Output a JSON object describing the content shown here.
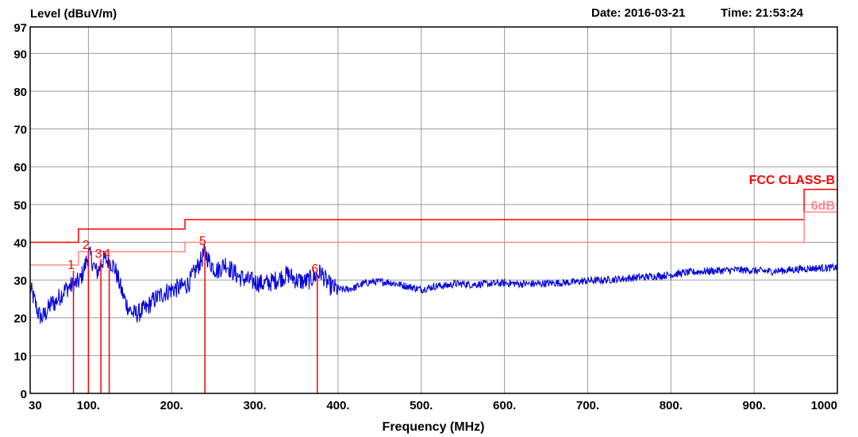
{
  "header": {
    "ylabel": "Level (dBuV/m)",
    "date_label": "Date: 2016-03-21",
    "time_label": "Time: 21:53:24"
  },
  "chart_data": {
    "type": "line",
    "xlabel": "Frequency (MHz)",
    "ylabel": "Level (dBuV/m)",
    "xlim": [
      30,
      1000
    ],
    "ylim": [
      0,
      97
    ],
    "x_ticks": [
      {
        "value": 30,
        "label": "30"
      },
      {
        "value": 100,
        "label": "100."
      },
      {
        "value": 200,
        "label": "200."
      },
      {
        "value": 300,
        "label": "300."
      },
      {
        "value": 400,
        "label": "400."
      },
      {
        "value": 500,
        "label": "500."
      },
      {
        "value": 600,
        "label": "600."
      },
      {
        "value": 700,
        "label": "700."
      },
      {
        "value": 800,
        "label": "800."
      },
      {
        "value": 900,
        "label": "900."
      },
      {
        "value": 1000,
        "label": "1000"
      }
    ],
    "y_ticks": [
      {
        "value": 0,
        "label": "0"
      },
      {
        "value": 10,
        "label": "10"
      },
      {
        "value": 20,
        "label": "20"
      },
      {
        "value": 30,
        "label": "30"
      },
      {
        "value": 40,
        "label": "40"
      },
      {
        "value": 50,
        "label": "50"
      },
      {
        "value": 60,
        "label": "60"
      },
      {
        "value": 70,
        "label": "70"
      },
      {
        "value": 80,
        "label": "80"
      },
      {
        "value": 90,
        "label": "90"
      },
      {
        "value": 97,
        "label": "97"
      }
    ],
    "grid": true,
    "limit_lines": [
      {
        "name": "FCC CLASS-B",
        "color": "#ff0000",
        "points": [
          [
            30,
            40
          ],
          [
            88,
            40
          ],
          [
            88,
            43.5
          ],
          [
            216,
            43.5
          ],
          [
            216,
            46
          ],
          [
            960,
            46
          ],
          [
            960,
            54
          ],
          [
            1000,
            54
          ]
        ]
      },
      {
        "name": "6dB",
        "color": "#ff8a8a",
        "points": [
          [
            30,
            34
          ],
          [
            88,
            34
          ],
          [
            88,
            37.5
          ],
          [
            216,
            37.5
          ],
          [
            216,
            40
          ],
          [
            960,
            40
          ],
          [
            960,
            48
          ],
          [
            1000,
            48
          ]
        ]
      }
    ],
    "markers": [
      {
        "label": "1",
        "x": 82,
        "y": 32.5
      },
      {
        "label": "2",
        "x": 100,
        "y": 37.8
      },
      {
        "label": "3",
        "x": 115,
        "y": 35.5
      },
      {
        "label": "4",
        "x": 125,
        "y": 35.5
      },
      {
        "label": "5",
        "x": 240,
        "y": 38.8
      },
      {
        "label": "6",
        "x": 375,
        "y": 31.5
      }
    ],
    "series": [
      {
        "color": "#0000dd",
        "x": [
          30,
          33,
          36,
          40,
          44,
          48,
          52,
          56,
          60,
          65,
          70,
          75,
          80,
          85,
          90,
          95,
          100,
          103,
          106,
          110,
          113,
          116,
          120,
          124,
          128,
          132,
          136,
          140,
          145,
          150,
          155,
          160,
          165,
          170,
          175,
          180,
          190,
          200,
          210,
          220,
          225,
          230,
          235,
          240,
          245,
          250,
          255,
          260,
          265,
          270,
          275,
          280,
          285,
          290,
          300,
          310,
          320,
          330,
          340,
          350,
          360,
          370,
          375,
          380,
          385,
          390,
          400,
          410,
          420,
          430,
          440,
          450,
          460,
          470,
          480,
          490,
          500,
          510,
          520,
          530,
          540,
          550,
          560,
          580,
          600,
          620,
          640,
          660,
          680,
          700,
          720,
          740,
          760,
          780,
          800,
          820,
          840,
          860,
          880,
          900,
          920,
          940,
          960,
          980,
          1000
        ],
        "y": [
          28,
          26,
          24,
          21,
          20,
          21,
          22.5,
          24,
          24,
          25.5,
          27,
          28,
          28.5,
          29,
          30,
          33,
          37,
          36,
          34,
          32,
          33,
          35,
          35.5,
          35,
          34.5,
          33,
          30,
          27,
          24,
          22,
          21,
          21.2,
          22,
          22.5,
          24,
          25,
          26.5,
          27.5,
          28,
          29,
          31,
          33,
          35,
          37.5,
          35,
          33.5,
          32.5,
          33.5,
          34.5,
          33,
          32,
          31,
          30.5,
          30,
          29.5,
          29,
          29.5,
          30.5,
          31.5,
          30,
          29.5,
          30.5,
          31.5,
          32,
          30,
          28.5,
          27.5,
          27.5,
          28,
          29,
          29.5,
          29.5,
          29.5,
          29,
          28.5,
          28,
          27.5,
          28,
          28.5,
          28.5,
          29,
          29,
          28.8,
          29,
          29.2,
          29,
          29,
          29.2,
          29.4,
          29.8,
          30,
          30.3,
          30.7,
          31,
          31.4,
          32,
          32.3,
          32.5,
          32.7,
          32.5,
          32.3,
          32.6,
          33,
          33.2,
          33.3
        ]
      }
    ]
  }
}
